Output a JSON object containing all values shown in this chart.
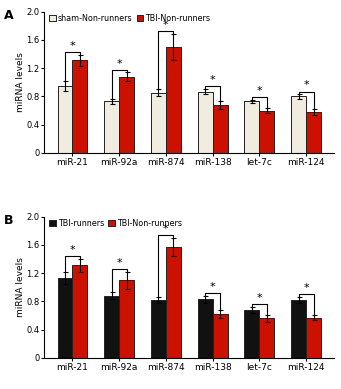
{
  "categories": [
    "miR-21",
    "miR-92a",
    "miR-874",
    "miR-138",
    "let-7c",
    "miR-124"
  ],
  "panel_A": {
    "title": "A",
    "bar1_label": "sham-Non-runners",
    "bar2_label": "TBI-Non-runners",
    "bar1_color": "#f0ece0",
    "bar2_color": "#cc1100",
    "bar1_values": [
      0.95,
      0.73,
      0.85,
      0.87,
      0.73,
      0.8
    ],
    "bar2_values": [
      1.31,
      1.08,
      1.5,
      0.68,
      0.6,
      0.58
    ],
    "bar1_errors": [
      0.07,
      0.04,
      0.05,
      0.04,
      0.02,
      0.03
    ],
    "bar2_errors": [
      0.08,
      0.06,
      0.18,
      0.06,
      0.04,
      0.04
    ],
    "ylim": [
      0,
      2.0
    ],
    "yticks": [
      0,
      0.4,
      0.8,
      1.2,
      1.6,
      2.0
    ]
  },
  "panel_B": {
    "title": "B",
    "bar1_label": "TBI-runners",
    "bar2_label": "TBI-Non-runners",
    "bar1_color": "#111111",
    "bar2_color": "#cc1100",
    "bar1_values": [
      1.13,
      0.88,
      0.82,
      0.83,
      0.68,
      0.82
    ],
    "bar2_values": [
      1.31,
      1.1,
      1.57,
      0.62,
      0.56,
      0.57
    ],
    "bar1_errors": [
      0.08,
      0.05,
      0.04,
      0.05,
      0.04,
      0.04
    ],
    "bar2_errors": [
      0.09,
      0.12,
      0.13,
      0.06,
      0.05,
      0.04
    ],
    "ylim": [
      0,
      2.0
    ],
    "yticks": [
      0,
      0.4,
      0.8,
      1.2,
      1.6,
      2.0
    ]
  },
  "ylabel": "miRNA levels",
  "bar_width": 0.32,
  "edge_color": "#222222",
  "sig_line_color": "#000000",
  "background_color": "#ffffff",
  "axis_label_fontsize": 6.5,
  "tick_fontsize": 6.0,
  "legend_fontsize": 5.8,
  "title_fontsize": 9,
  "sig_fontsize": 8
}
